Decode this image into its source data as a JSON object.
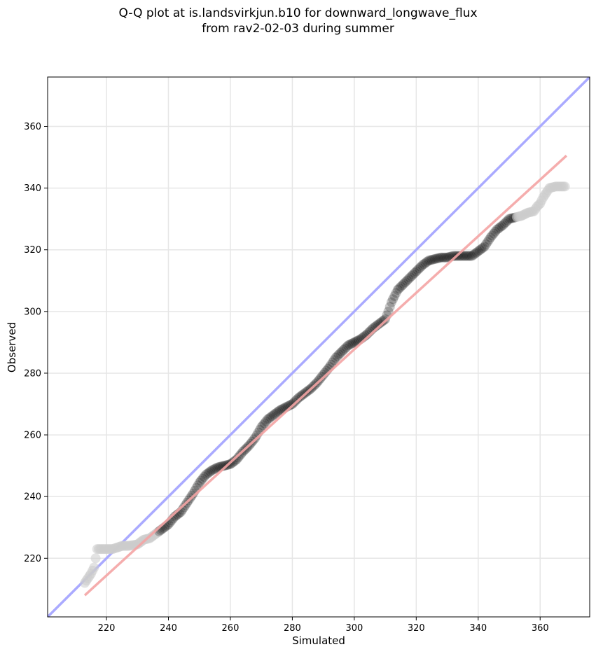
{
  "chart_data": {
    "type": "scatter",
    "title_line1": "Q-Q plot at is.landsvirkjun.b10 for downward_longwave_flux",
    "title_line2": "from rav2-02-03 during summer",
    "xlabel": "Simulated",
    "ylabel": "Observed",
    "xlim": [
      201,
      376
    ],
    "ylim": [
      201,
      376
    ],
    "xticks": [
      220,
      240,
      260,
      280,
      300,
      320,
      340,
      360
    ],
    "yticks": [
      220,
      240,
      260,
      280,
      300,
      320,
      340,
      360
    ],
    "grid": true,
    "reference_line": {
      "name": "1:1",
      "color": "#aaaaff",
      "x": [
        201,
        376
      ],
      "y": [
        201,
        376
      ]
    },
    "fit_line": {
      "color": "#f4a4a4",
      "x": [
        213,
        368.5
      ],
      "y": [
        208,
        350.5
      ]
    },
    "points_color": "#000000",
    "outlier_color": "#cccccc",
    "quantiles": {
      "x": [
        213,
        215,
        216,
        217,
        218,
        219,
        222,
        225,
        227,
        230,
        232,
        234,
        236,
        238,
        240,
        242,
        244,
        246,
        248,
        250,
        252,
        254,
        256,
        258,
        260,
        262,
        264,
        266,
        268,
        270,
        272,
        274,
        276,
        278,
        280,
        282,
        284,
        286,
        288,
        290,
        292,
        294,
        296,
        298,
        300,
        302,
        304,
        306,
        308,
        310,
        311,
        312,
        313,
        314,
        316,
        318,
        320,
        322,
        324,
        326,
        328,
        330,
        332,
        334,
        336,
        338,
        340,
        342,
        344,
        346,
        348,
        350,
        352,
        354,
        356,
        358,
        359,
        360,
        361,
        363,
        365,
        368
      ],
      "y": [
        212,
        215,
        217,
        223,
        223,
        223,
        223,
        224,
        224,
        224.5,
        226,
        226.5,
        228,
        229.5,
        231,
        233.5,
        235,
        238,
        241,
        244.5,
        247,
        248.5,
        249.5,
        250,
        250.5,
        252,
        254.5,
        256.5,
        259,
        262.5,
        265,
        266.5,
        268,
        269,
        270,
        272,
        273.5,
        275,
        277,
        279.5,
        282,
        285,
        287,
        289,
        290,
        291,
        292.5,
        294.5,
        296,
        297.5,
        300,
        303,
        305,
        307,
        309,
        311,
        313,
        315,
        316.5,
        317,
        317.5,
        317.5,
        318,
        318,
        318,
        318,
        319.5,
        321,
        324,
        326.5,
        328,
        330,
        330.5,
        331,
        332,
        332.5,
        334,
        335,
        337,
        340,
        340.5,
        340.5
      ]
    }
  }
}
